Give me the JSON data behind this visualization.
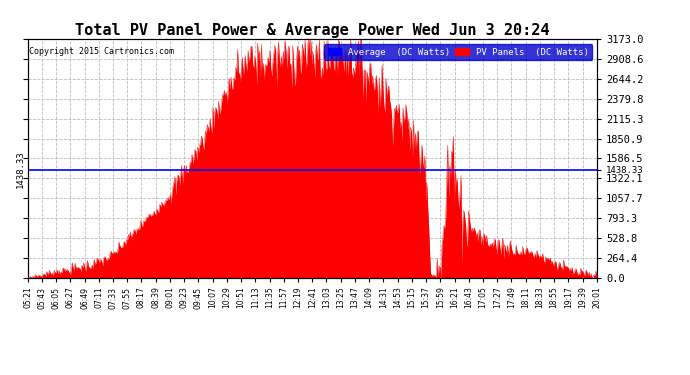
{
  "title": "Total PV Panel Power & Average Power Wed Jun 3 20:24",
  "copyright": "Copyright 2015 Cartronics.com",
  "average_value": 1438.33,
  "y_max": 3173.0,
  "y_ticks": [
    0.0,
    264.4,
    528.8,
    793.3,
    1057.7,
    1322.1,
    1586.5,
    1850.9,
    2115.3,
    2379.8,
    2644.2,
    2908.6,
    3173.0
  ],
  "fill_color": "#FF0000",
  "line_color": "#0000FF",
  "bg_color": "#FFFFFF",
  "grid_color": "#AAAAAA",
  "title_fontsize": 11,
  "legend_avg_label": "Average  (DC Watts)",
  "legend_pv_label": "PV Panels  (DC Watts)",
  "x_tick_labels": [
    "05:21",
    "05:43",
    "06:05",
    "06:27",
    "06:49",
    "07:11",
    "07:33",
    "07:55",
    "08:17",
    "08:39",
    "09:01",
    "09:23",
    "09:45",
    "10:07",
    "10:29",
    "10:51",
    "11:13",
    "11:35",
    "11:57",
    "12:19",
    "12:41",
    "13:03",
    "13:25",
    "13:47",
    "14:09",
    "14:31",
    "14:53",
    "15:15",
    "15:37",
    "15:59",
    "16:21",
    "16:43",
    "17:05",
    "17:27",
    "17:49",
    "18:11",
    "18:33",
    "18:55",
    "19:17",
    "19:39",
    "20:01"
  ],
  "left_label": "1438.33",
  "right_label": "1438.33"
}
